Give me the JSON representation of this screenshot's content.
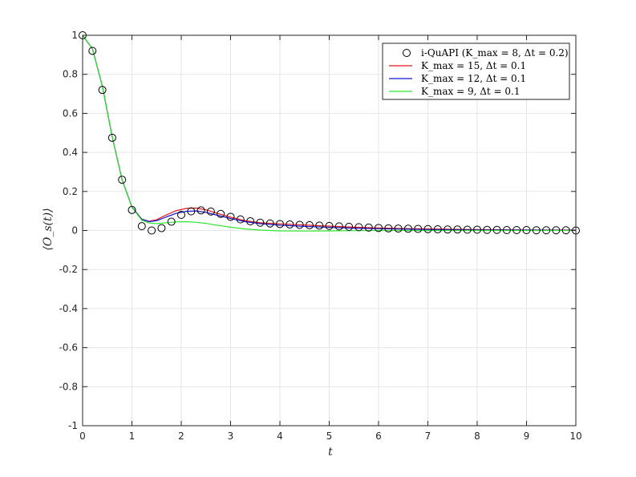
{
  "chart_data": {
    "type": "line",
    "xlabel": "t",
    "ylabel": "⟨O_s(t)⟩",
    "xlim": [
      0,
      10
    ],
    "ylim": [
      -1,
      1
    ],
    "x_ticks": [
      "0",
      "1",
      "2",
      "3",
      "4",
      "5",
      "6",
      "7",
      "8",
      "9",
      "10"
    ],
    "y_ticks": [
      "-1",
      "-0.8",
      "-0.6",
      "-0.4",
      "-0.2",
      "0",
      "0.2",
      "0.4",
      "0.6",
      "0.8",
      "1"
    ],
    "grid": true,
    "legend_position": "top-right",
    "series": [
      {
        "name": "i-QuAPI (K_max = 8, Δt = 0.2)",
        "style": "markers",
        "marker": "circle",
        "color": "#000000",
        "x": [
          0,
          0.2,
          0.4,
          0.6,
          0.8,
          1.0,
          1.2,
          1.4,
          1.6,
          1.8,
          2.0,
          2.2,
          2.4,
          2.6,
          2.8,
          3.0,
          3.2,
          3.4,
          3.6,
          3.8,
          4.0,
          4.2,
          4.4,
          4.6,
          4.8,
          5.0,
          5.2,
          5.4,
          5.6,
          5.8,
          6.0,
          6.2,
          6.4,
          6.6,
          6.8,
          7.0,
          7.2,
          7.4,
          7.6,
          7.8,
          8.0,
          8.2,
          8.4,
          8.6,
          8.8,
          9.0,
          9.2,
          9.4,
          9.6,
          9.8,
          10.0
        ],
        "y": [
          1.0,
          0.92,
          0.72,
          0.475,
          0.26,
          0.105,
          0.022,
          0.0,
          0.012,
          0.045,
          0.08,
          0.098,
          0.103,
          0.097,
          0.085,
          0.07,
          0.057,
          0.047,
          0.04,
          0.036,
          0.033,
          0.031,
          0.029,
          0.027,
          0.025,
          0.023,
          0.021,
          0.019,
          0.017,
          0.015,
          0.013,
          0.011,
          0.01,
          0.009,
          0.008,
          0.007,
          0.006,
          0.005,
          0.005,
          0.004,
          0.004,
          0.003,
          0.003,
          0.002,
          0.002,
          0.002,
          0.001,
          0.001,
          0.001,
          0.001,
          0.0
        ]
      },
      {
        "name": "K_max = 15, Δt = 0.1",
        "style": "line",
        "color": "#e0141e",
        "x": [
          0,
          0.2,
          0.4,
          0.6,
          0.8,
          1.0,
          1.2,
          1.35,
          1.5,
          1.7,
          1.9,
          2.1,
          2.3,
          2.5,
          2.7,
          3.0,
          3.3,
          3.6,
          4.0,
          4.5,
          5.0,
          5.5,
          6.0,
          6.5,
          7.0,
          8.0,
          9.0,
          10.0
        ],
        "y": [
          1.0,
          0.93,
          0.74,
          0.48,
          0.26,
          0.12,
          0.058,
          0.047,
          0.055,
          0.08,
          0.102,
          0.113,
          0.115,
          0.106,
          0.09,
          0.068,
          0.05,
          0.04,
          0.034,
          0.028,
          0.022,
          0.017,
          0.013,
          0.01,
          0.008,
          0.005,
          0.003,
          0.002
        ]
      },
      {
        "name": "K_max = 12, Δt = 0.1",
        "style": "line",
        "color": "#1414d2",
        "x": [
          0,
          0.2,
          0.4,
          0.6,
          0.8,
          1.0,
          1.2,
          1.35,
          1.5,
          1.7,
          1.9,
          2.1,
          2.3,
          2.5,
          2.7,
          3.0,
          3.3,
          3.6,
          4.0,
          4.5,
          5.0,
          5.5,
          6.0,
          6.5,
          7.0,
          8.0,
          9.0,
          10.0
        ],
        "y": [
          1.0,
          0.93,
          0.74,
          0.48,
          0.26,
          0.12,
          0.057,
          0.045,
          0.05,
          0.07,
          0.088,
          0.098,
          0.1,
          0.093,
          0.08,
          0.061,
          0.045,
          0.035,
          0.027,
          0.021,
          0.016,
          0.012,
          0.009,
          0.007,
          0.005,
          0.003,
          0.002,
          0.001
        ]
      },
      {
        "name": "K_max = 9, Δt = 0.1",
        "style": "line",
        "color": "#2ee62e",
        "x": [
          0,
          0.2,
          0.4,
          0.6,
          0.8,
          1.0,
          1.2,
          1.35,
          1.5,
          1.7,
          1.9,
          2.1,
          2.3,
          2.5,
          2.7,
          3.0,
          3.3,
          3.6,
          4.0,
          4.5,
          5.0,
          5.5,
          6.0,
          6.5,
          7.0,
          8.0,
          9.0,
          10.0
        ],
        "y": [
          1.0,
          0.93,
          0.74,
          0.48,
          0.26,
          0.118,
          0.052,
          0.038,
          0.035,
          0.04,
          0.044,
          0.045,
          0.042,
          0.036,
          0.028,
          0.017,
          0.008,
          0.002,
          -0.002,
          -0.003,
          -0.002,
          -0.001,
          0.0,
          0.0,
          0.0,
          0.0,
          0.0,
          0.0
        ]
      }
    ]
  }
}
